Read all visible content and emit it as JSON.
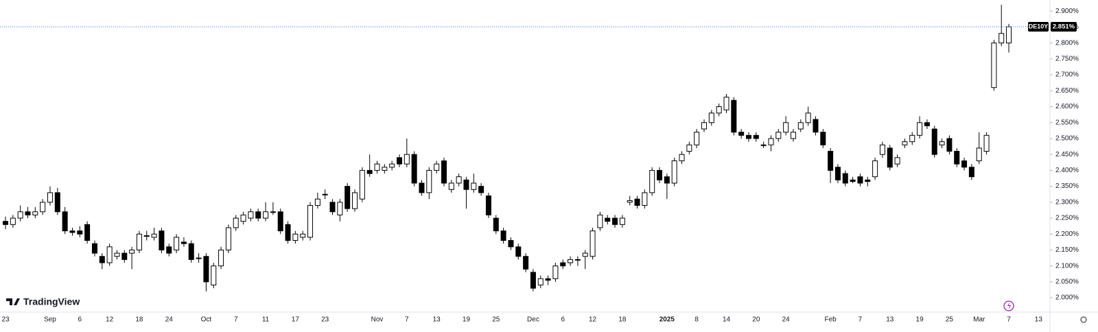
{
  "chart_data": {
    "type": "candlestick",
    "categories": [
      "23",
      null,
      null,
      null,
      null,
      null,
      "Sep",
      null,
      null,
      null,
      "6",
      null,
      null,
      null,
      "12",
      null,
      null,
      null,
      "18",
      null,
      null,
      null,
      "24",
      null,
      null,
      null,
      null,
      "Oct",
      null,
      null,
      null,
      "7",
      null,
      null,
      null,
      "11",
      null,
      null,
      null,
      "17",
      null,
      null,
      null,
      "23",
      null,
      null,
      null,
      null,
      null,
      null,
      "Nov",
      null,
      null,
      null,
      "7",
      null,
      null,
      null,
      "13",
      null,
      null,
      null,
      "19",
      null,
      null,
      null,
      "25",
      null,
      null,
      null,
      null,
      "Dec",
      null,
      null,
      null,
      "6",
      null,
      null,
      null,
      "12",
      null,
      null,
      null,
      "18",
      null,
      null,
      null,
      null,
      null,
      "2025",
      null,
      null,
      null,
      "8",
      null,
      null,
      null,
      "14",
      null,
      null,
      null,
      "20",
      null,
      null,
      null,
      "24",
      null,
      null,
      null,
      null,
      null,
      "Feb",
      null,
      null,
      null,
      "7",
      null,
      null,
      null,
      "13",
      null,
      null,
      null,
      "19",
      null,
      null,
      null,
      "25",
      null,
      null,
      null,
      "Mar",
      null,
      null,
      null,
      "7",
      null,
      null,
      null,
      "13"
    ],
    "open": [
      2.24,
      2.23,
      2.25,
      2.27,
      2.26,
      2.27,
      2.3,
      2.33,
      2.27,
      2.21,
      2.21,
      2.23,
      2.17,
      2.13,
      2.11,
      2.13,
      2.14,
      2.14,
      2.15,
      2.195,
      2.19,
      2.21,
      2.16,
      2.15,
      2.175,
      2.17,
      2.125,
      2.13,
      2.04,
      2.1,
      2.15,
      2.22,
      2.24,
      2.25,
      2.27,
      2.25,
      2.27,
      2.27,
      2.23,
      2.18,
      2.19,
      2.19,
      2.29,
      2.325,
      2.3,
      2.26,
      2.35,
      2.28,
      2.31,
      2.4,
      2.4,
      2.4,
      2.41,
      2.44,
      2.42,
      2.45,
      2.36,
      2.33,
      2.4,
      2.43,
      2.34,
      2.36,
      2.37,
      2.34,
      2.35,
      2.32,
      2.25,
      2.21,
      2.18,
      2.16,
      2.13,
      2.08,
      2.04,
      2.06,
      2.06,
      2.11,
      2.11,
      2.12,
      2.13,
      2.13,
      2.22,
      2.25,
      2.25,
      2.23,
      2.3,
      2.31,
      2.29,
      2.33,
      2.4,
      2.38,
      2.36,
      2.43,
      2.46,
      2.48,
      2.53,
      2.55,
      2.58,
      2.59,
      2.62,
      2.52,
      2.51,
      2.51,
      2.48,
      2.48,
      2.5,
      2.52,
      2.5,
      2.53,
      2.55,
      2.56,
      2.52,
      2.46,
      2.41,
      2.39,
      2.37,
      2.38,
      2.37,
      2.38,
      2.45,
      2.47,
      2.42,
      2.48,
      2.49,
      2.51,
      2.55,
      2.53,
      2.48,
      2.5,
      2.46,
      2.43,
      2.41,
      2.43,
      2.46,
      2.66,
      2.8,
      2.8,
      null,
      null,
      null,
      null
    ],
    "high": [
      2.255,
      2.26,
      2.29,
      2.285,
      2.285,
      2.31,
      2.35,
      2.345,
      2.285,
      2.22,
      2.225,
      2.24,
      2.18,
      2.14,
      2.17,
      2.15,
      2.15,
      2.16,
      2.21,
      2.21,
      2.22,
      2.22,
      2.17,
      2.2,
      2.19,
      2.18,
      2.14,
      2.14,
      2.11,
      2.16,
      2.23,
      2.26,
      2.27,
      2.28,
      2.28,
      2.3,
      2.3,
      2.28,
      2.24,
      2.21,
      2.21,
      2.3,
      2.33,
      2.34,
      2.31,
      2.31,
      2.36,
      2.34,
      2.41,
      2.45,
      2.43,
      2.42,
      2.43,
      2.45,
      2.5,
      2.46,
      2.37,
      2.41,
      2.43,
      2.44,
      2.37,
      2.39,
      2.38,
      2.39,
      2.36,
      2.33,
      2.26,
      2.22,
      2.19,
      2.17,
      2.14,
      2.09,
      2.07,
      2.07,
      2.11,
      2.12,
      2.13,
      2.13,
      2.15,
      2.22,
      2.27,
      2.26,
      2.26,
      2.26,
      2.32,
      2.32,
      2.34,
      2.41,
      2.41,
      2.39,
      2.44,
      2.46,
      2.49,
      2.53,
      2.56,
      2.59,
      2.61,
      2.64,
      2.63,
      2.53,
      2.52,
      2.52,
      2.49,
      2.51,
      2.53,
      2.57,
      2.53,
      2.56,
      2.6,
      2.57,
      2.53,
      2.47,
      2.42,
      2.4,
      2.38,
      2.39,
      2.38,
      2.44,
      2.49,
      2.48,
      2.45,
      2.5,
      2.52,
      2.57,
      2.56,
      2.54,
      2.5,
      2.51,
      2.47,
      2.44,
      2.42,
      2.52,
      2.52,
      2.81,
      2.92,
      2.86,
      null,
      null,
      null,
      null
    ],
    "low": [
      2.215,
      2.22,
      2.24,
      2.25,
      2.25,
      2.26,
      2.29,
      2.26,
      2.2,
      2.195,
      2.19,
      2.17,
      2.13,
      2.09,
      2.1,
      2.12,
      2.11,
      2.09,
      2.14,
      2.18,
      2.18,
      2.14,
      2.13,
      2.14,
      2.16,
      2.11,
      2.11,
      2.02,
      2.03,
      2.09,
      2.14,
      2.21,
      2.23,
      2.24,
      2.24,
      2.24,
      2.26,
      2.2,
      2.17,
      2.17,
      2.18,
      2.18,
      2.28,
      2.31,
      2.26,
      2.24,
      2.27,
      2.27,
      2.3,
      2.38,
      2.39,
      2.39,
      2.4,
      2.41,
      2.41,
      2.35,
      2.32,
      2.31,
      2.39,
      2.35,
      2.33,
      2.35,
      2.28,
      2.33,
      2.32,
      2.25,
      2.2,
      2.17,
      2.15,
      2.12,
      2.08,
      2.02,
      2.03,
      2.04,
      2.05,
      2.09,
      2.1,
      2.1,
      2.09,
      2.12,
      2.21,
      2.23,
      2.22,
      2.22,
      2.29,
      2.28,
      2.28,
      2.32,
      2.36,
      2.31,
      2.35,
      2.42,
      2.45,
      2.47,
      2.52,
      2.54,
      2.57,
      2.58,
      2.51,
      2.5,
      2.49,
      2.49,
      2.47,
      2.46,
      2.49,
      2.51,
      2.49,
      2.52,
      2.54,
      2.51,
      2.47,
      2.36,
      2.36,
      2.35,
      2.36,
      2.35,
      2.35,
      2.37,
      2.44,
      2.4,
      2.41,
      2.47,
      2.48,
      2.5,
      2.53,
      2.44,
      2.47,
      2.45,
      2.41,
      2.4,
      2.37,
      2.42,
      2.45,
      2.65,
      2.79,
      2.77,
      null,
      null,
      null,
      null
    ],
    "close": [
      2.23,
      2.25,
      2.27,
      2.26,
      2.27,
      2.3,
      2.33,
      2.27,
      2.21,
      2.205,
      2.2,
      2.18,
      2.14,
      2.11,
      2.16,
      2.14,
      2.12,
      2.15,
      2.2,
      2.195,
      2.2,
      2.15,
      2.14,
      2.19,
      2.17,
      2.12,
      2.125,
      2.05,
      2.1,
      2.15,
      2.22,
      2.25,
      2.26,
      2.27,
      2.25,
      2.27,
      2.27,
      2.21,
      2.18,
      2.2,
      2.2,
      2.29,
      2.31,
      2.325,
      2.27,
      2.3,
      2.28,
      2.33,
      2.4,
      2.39,
      2.42,
      2.41,
      2.42,
      2.42,
      2.45,
      2.36,
      2.33,
      2.4,
      2.42,
      2.36,
      2.36,
      2.38,
      2.34,
      2.36,
      2.33,
      2.26,
      2.21,
      2.18,
      2.16,
      2.13,
      2.09,
      2.03,
      2.06,
      2.055,
      2.1,
      2.1,
      2.12,
      2.12,
      2.14,
      2.21,
      2.26,
      2.24,
      2.23,
      2.25,
      2.305,
      2.29,
      2.33,
      2.4,
      2.37,
      2.36,
      2.43,
      2.45,
      2.48,
      2.52,
      2.55,
      2.58,
      2.6,
      2.63,
      2.52,
      2.51,
      2.5,
      2.5,
      2.48,
      2.5,
      2.52,
      2.55,
      2.52,
      2.55,
      2.58,
      2.52,
      2.48,
      2.4,
      2.37,
      2.36,
      2.365,
      2.36,
      2.365,
      2.43,
      2.48,
      2.41,
      2.44,
      2.49,
      2.51,
      2.55,
      2.54,
      2.45,
      2.49,
      2.46,
      2.42,
      2.41,
      2.38,
      2.47,
      2.51,
      2.8,
      2.83,
      2.851,
      null,
      null,
      null,
      null
    ],
    "up_color": "#ffffff",
    "down_color": "#000000",
    "border_color": "#000000",
    "ylim": [
      1.955,
      2.935
    ],
    "yticks": [
      {
        "value": 2.0,
        "label": "2.000%"
      },
      {
        "value": 2.05,
        "label": "2.050%"
      },
      {
        "value": 2.1,
        "label": "2.100%"
      },
      {
        "value": 2.15,
        "label": "2.150%"
      },
      {
        "value": 2.2,
        "label": "2.200%"
      },
      {
        "value": 2.25,
        "label": "2.250%"
      },
      {
        "value": 2.3,
        "label": "2.300%"
      },
      {
        "value": 2.35,
        "label": "2.350%"
      },
      {
        "value": 2.4,
        "label": "2.400%"
      },
      {
        "value": 2.45,
        "label": "2.450%"
      },
      {
        "value": 2.5,
        "label": "2.500%"
      },
      {
        "value": 2.55,
        "label": "2.550%"
      },
      {
        "value": 2.6,
        "label": "2.600%"
      },
      {
        "value": 2.65,
        "label": "2.650%"
      },
      {
        "value": 2.7,
        "label": "2.700%"
      },
      {
        "value": 2.75,
        "label": "2.750%"
      },
      {
        "value": 2.8,
        "label": "2.800%"
      },
      {
        "value": 2.85,
        "label": "2.850%"
      },
      {
        "value": 2.9,
        "label": "2.900%"
      }
    ],
    "grid": false,
    "last_price": {
      "value": 2.851,
      "label": "2.851%",
      "symbol": "DE10Y",
      "color": "#2962ff"
    }
  },
  "branding": "TradingView"
}
